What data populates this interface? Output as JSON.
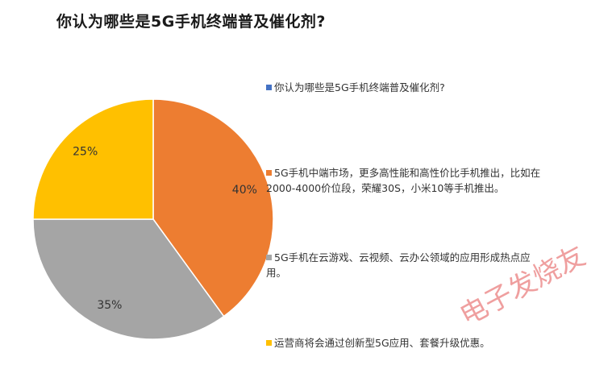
{
  "title": "你认为哪些是5G手机终端普及催化剂?",
  "chart_data": {
    "type": "pie",
    "title": "你认为哪些是5G手机终端普及催化剂?",
    "slices": [
      {
        "label": "你认为哪些是5G手机终端普及催化剂?",
        "value": 0,
        "percent_label": "",
        "color": "#4472C4"
      },
      {
        "label": "5G手机中端市场，更多高性能和高性价比手机推出，比如在2000-4000价位段，荣耀30S，小米10等手机推出。",
        "value": 40,
        "percent_label": "40%",
        "color": "#ED7D31"
      },
      {
        "label": "5G手机在云游戏、云视频、云办公领域的应用形成热点应用。",
        "value": 35,
        "percent_label": "35%",
        "color": "#A5A5A5"
      },
      {
        "label": "运营商将会通过创新型5G应用、套餐升级优惠。",
        "value": 25,
        "percent_label": "25%",
        "color": "#FFC000"
      }
    ],
    "legend_position": "right"
  },
  "watermark": "电子发烧友"
}
